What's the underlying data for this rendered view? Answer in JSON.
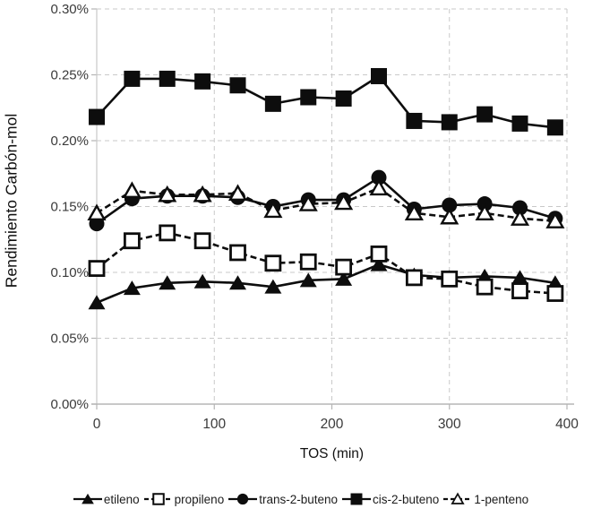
{
  "chart_data": {
    "type": "line",
    "xlabel": "TOS (min)",
    "ylabel": "Rendimiento Carbón-mol",
    "xlim": [
      0,
      400
    ],
    "ylim": [
      0,
      0.3
    ],
    "grid": "dashed",
    "legend_position": "bottom",
    "x_tick_values": [
      0,
      100,
      200,
      300,
      400
    ],
    "x_tick_labels": [
      "0",
      "100",
      "200",
      "300",
      "400"
    ],
    "y_tick_values": [
      0,
      0.05,
      0.1,
      0.15,
      0.2,
      0.25,
      0.3
    ],
    "y_tick_labels": [
      "0.00%",
      "0.05%",
      "0.10%",
      "0.15%",
      "0.20%",
      "0.25%",
      "0.30%"
    ],
    "x": [
      0,
      30,
      60,
      90,
      120,
      150,
      180,
      210,
      240,
      270,
      300,
      330,
      360,
      390
    ],
    "series": [
      {
        "name": "etileno",
        "marker": "filled-triangle",
        "line": "solid",
        "values": [
          0.077,
          0.088,
          0.092,
          0.093,
          0.092,
          0.089,
          0.094,
          0.095,
          0.106,
          0.098,
          0.096,
          0.097,
          0.096,
          0.092
        ]
      },
      {
        "name": "propileno",
        "marker": "open-square",
        "line": "dashed",
        "values": [
          0.103,
          0.124,
          0.13,
          0.124,
          0.115,
          0.107,
          0.108,
          0.104,
          0.114,
          0.096,
          0.095,
          0.089,
          0.086,
          0.084
        ]
      },
      {
        "name": "trans-2-buteno",
        "marker": "filled-circle",
        "line": "solid",
        "values": [
          0.137,
          0.156,
          0.158,
          0.158,
          0.157,
          0.15,
          0.155,
          0.155,
          0.172,
          0.148,
          0.151,
          0.152,
          0.149,
          0.141
        ]
      },
      {
        "name": "cis-2-buteno",
        "marker": "filled-square",
        "line": "solid",
        "values": [
          0.218,
          0.247,
          0.247,
          0.245,
          0.242,
          0.228,
          0.233,
          0.232,
          0.249,
          0.215,
          0.214,
          0.22,
          0.213,
          0.21
        ]
      },
      {
        "name": "1-penteno",
        "marker": "open-triangle",
        "line": "dashed",
        "values": [
          0.145,
          0.162,
          0.159,
          0.159,
          0.16,
          0.147,
          0.152,
          0.153,
          0.164,
          0.145,
          0.142,
          0.145,
          0.141,
          0.139
        ]
      }
    ],
    "colors": {
      "series": "#0d0d0d",
      "grid": "#c9c9c9",
      "axis": "#b5b5b5",
      "text": "#3a3a3a"
    }
  }
}
